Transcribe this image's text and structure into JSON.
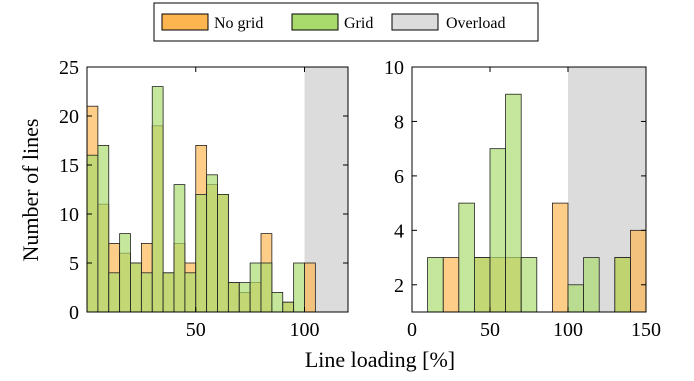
{
  "legend": {
    "items": [
      {
        "key": "no_grid",
        "label": "No grid",
        "color": "#fdb64f"
      },
      {
        "key": "grid",
        "label": "Grid",
        "color": "#a8db6c"
      },
      {
        "key": "overload",
        "label": "Overload",
        "color": "#dcdcdc"
      }
    ]
  },
  "chart_data": [
    {
      "type": "bar",
      "subtype": "overlaid-histogram",
      "xlabel": "Line loading [%]",
      "ylabel": "Number of lines",
      "xlim": [
        0,
        120
      ],
      "ylim": [
        0,
        25
      ],
      "xticks": [
        50,
        100
      ],
      "yticks": [
        0,
        5,
        10,
        15,
        20,
        25
      ],
      "bin_width": 5,
      "overload_region": [
        100,
        120
      ],
      "bins": [
        0,
        5,
        10,
        15,
        20,
        25,
        30,
        35,
        40,
        45,
        50,
        55,
        60,
        65,
        70,
        75,
        80,
        85,
        90,
        95,
        100
      ],
      "series": [
        {
          "name": "No grid",
          "values": [
            21,
            11,
            7,
            6,
            5,
            7,
            19,
            4,
            7,
            5,
            17,
            13,
            12,
            3,
            2,
            3,
            8,
            0,
            1,
            0,
            5
          ]
        },
        {
          "name": "Grid",
          "values": [
            16,
            17,
            4,
            8,
            5,
            4,
            23,
            4,
            13,
            4,
            12,
            14,
            12,
            3,
            3,
            5,
            5,
            2,
            1,
            5,
            0
          ]
        }
      ],
      "grid": false
    },
    {
      "type": "bar",
      "subtype": "overlaid-histogram",
      "xlabel": "Line loading [%]",
      "ylabel": "",
      "xlim": [
        0,
        150
      ],
      "ylim": [
        1,
        10
      ],
      "xticks": [
        0,
        50,
        100,
        150
      ],
      "yticks": [
        2,
        4,
        6,
        8,
        10
      ],
      "bin_width": 10,
      "overload_region": [
        100,
        150
      ],
      "bins": [
        10,
        20,
        30,
        40,
        50,
        60,
        70,
        80,
        90,
        100,
        110,
        120,
        130,
        140
      ],
      "series": [
        {
          "name": "No grid",
          "values": [
            0,
            3,
            0,
            3,
            3,
            3,
            0,
            0,
            5,
            0,
            0,
            0,
            3,
            4
          ]
        },
        {
          "name": "Grid",
          "values": [
            3,
            0,
            5,
            3,
            7,
            9,
            3,
            0,
            0,
            2,
            3,
            0,
            3,
            0
          ]
        }
      ],
      "grid": false
    }
  ]
}
